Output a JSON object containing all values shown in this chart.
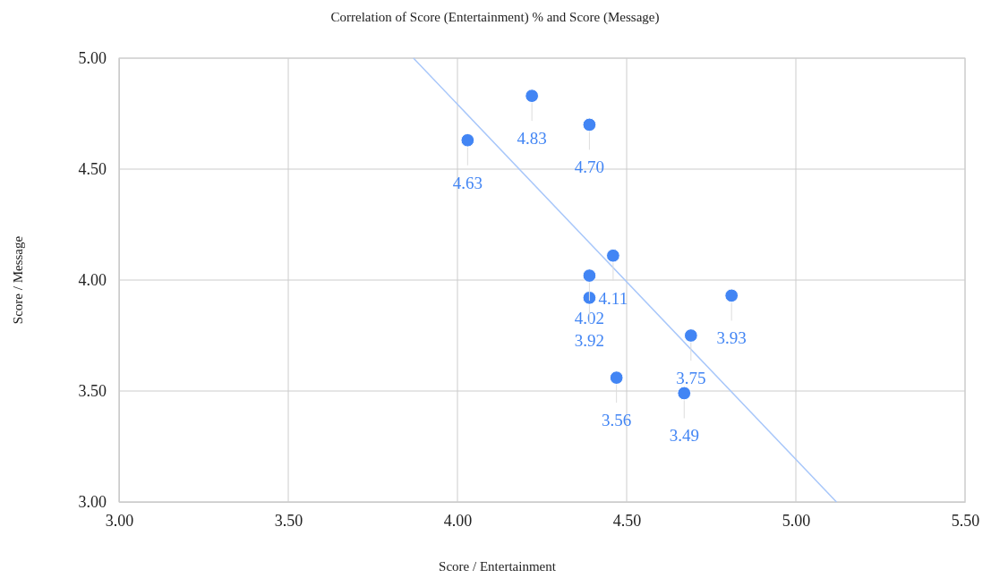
{
  "chart_data": {
    "type": "scatter",
    "title": "Correlation of Score (Entertainment) % and Score (Message)",
    "xlabel": "Score / Entertainment",
    "ylabel": "Score / Message",
    "xlim": [
      3,
      5.5
    ],
    "xticks": [
      {
        "value": 3,
        "label": "3.00"
      },
      {
        "value": 3.5,
        "label": "3.50"
      },
      {
        "value": 4,
        "label": "4.00"
      },
      {
        "value": 4.5,
        "label": "4.50"
      },
      {
        "value": 5,
        "label": "5.00"
      },
      {
        "value": 5.5,
        "label": "5.50"
      }
    ],
    "ylim": [
      3,
      5
    ],
    "yticks": [
      {
        "value": 3,
        "label": "3.00"
      },
      {
        "value": 3.5,
        "label": "3.50"
      },
      {
        "value": 4,
        "label": "4.00"
      },
      {
        "value": 4.5,
        "label": "4.50"
      },
      {
        "value": 5,
        "label": "5.00"
      }
    ],
    "grid": true,
    "series": [
      {
        "marker": "circle",
        "color": "#4285f4",
        "x": [
          4.03,
          4.22,
          4.39,
          4.46,
          4.39,
          4.39,
          4.81,
          4.69,
          4.47,
          4.67
        ],
        "values": [
          4.63,
          4.83,
          4.7,
          4.11,
          4.02,
          3.92,
          3.93,
          3.75,
          3.56,
          3.49
        ],
        "value_labels": [
          "4.63",
          "4.83",
          "4.70",
          "4.11",
          "4.02",
          "3.92",
          "3.93",
          "3.75",
          "3.56",
          "3.49"
        ]
      },
      {
        "type": "line",
        "color": "#a8c7fa",
        "x": [
          3.87,
          5.12
        ],
        "values": [
          5.0,
          3.0
        ]
      }
    ]
  }
}
